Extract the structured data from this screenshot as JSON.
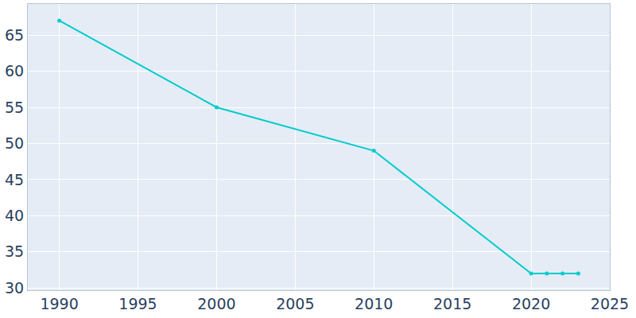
{
  "chart_data": {
    "type": "line",
    "x": [
      1990,
      2000,
      2010,
      2020,
      2021,
      2022,
      2023
    ],
    "values": [
      67,
      55,
      49,
      32,
      32,
      32,
      32
    ],
    "color": "#00cccc",
    "marker": "circle",
    "xlim": [
      1988,
      2025
    ],
    "xticks": [
      1990,
      1995,
      2000,
      2005,
      2010,
      2015,
      2020,
      2025
    ],
    "ylim": [
      29.7,
      69.3
    ],
    "yticks": [
      30,
      35,
      40,
      45,
      50,
      55,
      60,
      65
    ],
    "grid": true
  }
}
